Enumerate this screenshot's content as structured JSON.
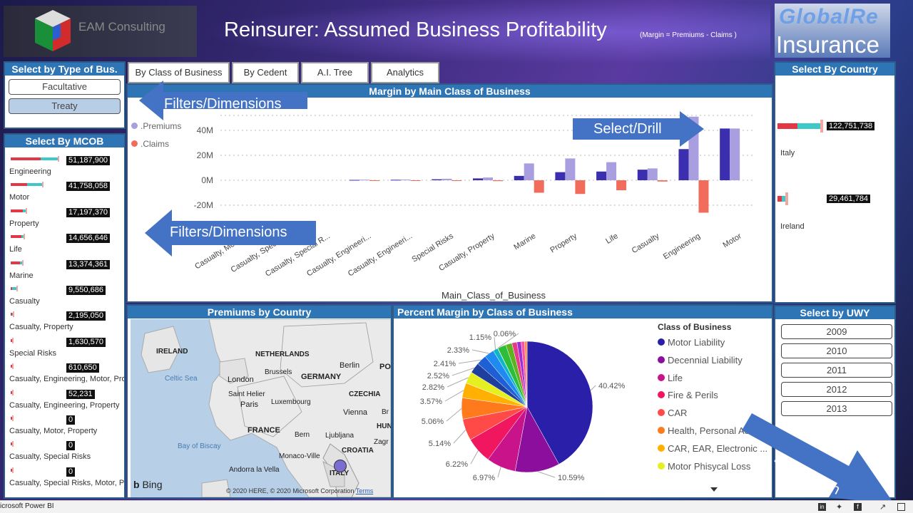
{
  "header": {
    "company": "EAM Consulting",
    "title": "Reinsurer: Assumed Business Profitability",
    "subtitle": "(Margin = Premiums - Claims )",
    "logo_line1": "GlobalRe",
    "logo_line2": "Insurance"
  },
  "tabs": [
    "By Class of Business",
    "By Cedent",
    "A.I. Tree",
    "Analytics"
  ],
  "type_slicer": {
    "title": "Select by Type of Bus.",
    "options": [
      "Facultative",
      "Treaty"
    ],
    "selected": "Treaty"
  },
  "mcob": {
    "title": "Select By MCOB",
    "items": [
      {
        "label": "Engineering",
        "value": "51,187,900",
        "red": 1.0,
        "teal": 0.85
      },
      {
        "label": "Motor",
        "value": "41,758,058",
        "red": 0.55,
        "teal": 0.75
      },
      {
        "label": "Property",
        "value": "17,197,370",
        "red": 0.4,
        "teal": 0.15
      },
      {
        "label": "Life",
        "value": "14,656,646",
        "red": 0.35,
        "teal": 0.1
      },
      {
        "label": "Marine",
        "value": "13,374,361",
        "red": 0.3,
        "teal": 0.1
      },
      {
        "label": "Casualty",
        "value": "9,550,686",
        "red": 0.05,
        "teal": 0.2
      },
      {
        "label": "Casualty, Property",
        "value": "2,195,050",
        "red": 0.04,
        "teal": 0.02
      },
      {
        "label": "Special Risks",
        "value": "1,630,570",
        "red": 0.04,
        "teal": 0.01
      },
      {
        "label": "Casualty, Engineering, Motor, Pro",
        "value": "610,650",
        "red": 0.02,
        "teal": 0.01
      },
      {
        "label": "Casualty, Engineering, Property",
        "value": "52,231",
        "red": 0.02,
        "teal": 0.0
      },
      {
        "label": "Casualty, Motor, Property",
        "value": "0",
        "red": 0.02,
        "teal": 0.0
      },
      {
        "label": "Casualty, Special Risks",
        "value": "0",
        "red": 0.02,
        "teal": 0.0
      },
      {
        "label": "Casualty, Special Risks, Motor, Pro",
        "value": "0",
        "red": 0.02,
        "teal": 0.0
      }
    ]
  },
  "country_slicer": {
    "title": "Select By Country",
    "items": [
      {
        "label": "Italy",
        "value": "122,751,738"
      },
      {
        "label": "Ireland",
        "value": "29,461,784"
      }
    ]
  },
  "uwy": {
    "title": "Select by UWY",
    "years": [
      "2009",
      "2010",
      "2011",
      "2012",
      "2013"
    ]
  },
  "margin_chart": {
    "title": "Margin by Main Class of Business",
    "legend": [
      ".Premiums",
      ".Claims"
    ],
    "x_title": "Main_Class_of_Business",
    "ticks": [
      "40M",
      "20M",
      "0M",
      "-20M"
    ],
    "callouts": {
      "filters_top": "Filters/Dimensions",
      "filters_bottom": "Filters/Dimensions",
      "select_drill": "Select/Drill"
    }
  },
  "chart_data": [
    {
      "type": "bar",
      "title": "Margin by Main Class of Business",
      "xlabel": "Main_Class_of_Business",
      "ylabel": "",
      "ylim": [
        -30,
        50
      ],
      "y_unit": "M",
      "categories": [
        "Casualty, Motor...",
        "Casualty, Special...",
        "Casualty, Special R...",
        "Casualty, Engineeri...",
        "Casualty, Engineeri...",
        "Special Risks",
        "Casualty, Property",
        "Marine",
        "Property",
        "Life",
        "Casualty",
        "Engineering",
        "Motor"
      ],
      "series": [
        {
          "name": "",
          "color": "#3b2fb0",
          "values": [
            0,
            0,
            0,
            0.3,
            0.4,
            0.8,
            1.5,
            3.5,
            6.5,
            7,
            8.5,
            25,
            41.5
          ]
        },
        {
          "name": ".Premiums",
          "color": "#a89ee0",
          "values": [
            0,
            0,
            0,
            0.5,
            0.6,
            1.2,
            2.2,
            13.5,
            17.5,
            14.5,
            9.5,
            51,
            41.5
          ]
        },
        {
          "name": ".Claims",
          "color": "#f26c5b",
          "values": [
            0,
            0,
            0,
            -0.2,
            -0.2,
            -0.4,
            -0.7,
            -10,
            -11,
            -8,
            -1,
            -26,
            0
          ]
        }
      ]
    },
    {
      "type": "pie",
      "title": "Percent Margin by Class of Business",
      "legend_title": "Class of Business",
      "slices": [
        {
          "label": "Motor Liability",
          "value": 40.42,
          "text": "40.42%",
          "color": "#2a1fa8"
        },
        {
          "label": "Decennial Liability",
          "value": 10.59,
          "text": "10.59%",
          "color": "#8b0e9c"
        },
        {
          "label": "Life",
          "value": 6.97,
          "text": "6.97%",
          "color": "#c8138a"
        },
        {
          "label": "Fire & Perils",
          "value": 6.22,
          "text": "6.22%",
          "color": "#f0165f"
        },
        {
          "label": "CAR",
          "value": 5.14,
          "text": "5.14%",
          "color": "#ff4a48"
        },
        {
          "label": "Health, Personal Ac...",
          "value": 5.06,
          "text": "5.06%",
          "color": "#ff7a1c"
        },
        {
          "label": "CAR, EAR, Electronic ...",
          "value": 3.57,
          "text": "3.57%",
          "color": "#ffb000"
        },
        {
          "label": "Motor Phisycal Loss",
          "value": 2.82,
          "text": "2.82%",
          "color": "#e6ef1f"
        },
        {
          "label": "",
          "value": 2.52,
          "text": "2.52%",
          "color": "#1e3f9e"
        },
        {
          "label": "",
          "value": 2.41,
          "text": "2.41%",
          "color": "#1f5fd6"
        },
        {
          "label": "",
          "value": 2.33,
          "text": "2.33%",
          "color": "#1f8bf0"
        },
        {
          "label": "",
          "value": 1.15,
          "text": "1.15%",
          "color": "#0fb5c8"
        },
        {
          "label": "",
          "value": 0.06,
          "text": "0.06%",
          "color": "#18c08a"
        },
        {
          "label": "",
          "value": 2.0,
          "text": "",
          "color": "#2dbd3a"
        },
        {
          "label": "",
          "value": 1.5,
          "text": "",
          "color": "#5db320"
        },
        {
          "label": "",
          "value": 1.2,
          "text": "",
          "color": "#e83a8a"
        },
        {
          "label": "",
          "value": 1.0,
          "text": "",
          "color": "#9b2fd0"
        },
        {
          "label": "",
          "value": 0.8,
          "text": "",
          "color": "#ff4f9f"
        },
        {
          "label": "",
          "value": 0.6,
          "text": "",
          "color": "#ff8c4a"
        }
      ]
    }
  ],
  "map": {
    "title": "Premiums by Country",
    "labels": [
      "IRELAND",
      "NETHERLANDS",
      "Berlin",
      "PO",
      "Celtic Sea",
      "London",
      "Brussels",
      "GERMANY",
      "Saint Helier",
      "Luxembourg",
      "CZECHIA",
      "Paris",
      "Vienna",
      "Br",
      "FRANCE",
      "Bern",
      "Ljubljana",
      "HUN",
      "Zagr",
      "Bay of Biscay",
      "Monaco-Ville",
      "CROATIA",
      "Andorra la Vella",
      "ITALY"
    ],
    "bing": "Bing",
    "copyright": "© 2020 HERE, © 2020 Microsoft Corporation",
    "terms": "Terms"
  },
  "pie_panel": {
    "title": "Percent Margin by Class of Business",
    "legend_title": "Class of Business"
  },
  "fullscreen": "Full Screen",
  "statusbar": {
    "app": "icrosoft Power BI"
  }
}
